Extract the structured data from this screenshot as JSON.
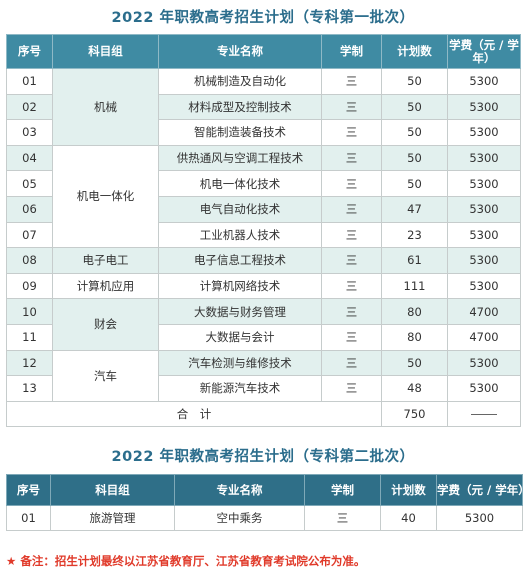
{
  "table1": {
    "title": "2022 年职教高考招生计划（专科第一批次）",
    "headers": [
      "序号",
      "科目组",
      "专业名称",
      "学制",
      "计划数",
      "学费（元 / 学年）"
    ],
    "groups": [
      {
        "name": "机械",
        "start": 0,
        "span": 3
      },
      {
        "name": "机电一体化",
        "start": 3,
        "span": 4
      },
      {
        "name": "电子电工",
        "start": 7,
        "span": 1
      },
      {
        "name": "计算机应用",
        "start": 8,
        "span": 1
      },
      {
        "name": "财会",
        "start": 9,
        "span": 2
      },
      {
        "name": "汽车",
        "start": 11,
        "span": 2
      }
    ],
    "rows": [
      {
        "no": "01",
        "major": "机械制造及自动化",
        "years": "三",
        "plan": "50",
        "fee": "5300"
      },
      {
        "no": "02",
        "major": "材料成型及控制技术",
        "years": "三",
        "plan": "50",
        "fee": "5300"
      },
      {
        "no": "03",
        "major": "智能制造装备技术",
        "years": "三",
        "plan": "50",
        "fee": "5300"
      },
      {
        "no": "04",
        "major": "供热通风与空调工程技术",
        "years": "三",
        "plan": "50",
        "fee": "5300"
      },
      {
        "no": "05",
        "major": "机电一体化技术",
        "years": "三",
        "plan": "50",
        "fee": "5300"
      },
      {
        "no": "06",
        "major": "电气自动化技术",
        "years": "三",
        "plan": "47",
        "fee": "5300"
      },
      {
        "no": "07",
        "major": "工业机器人技术",
        "years": "三",
        "plan": "23",
        "fee": "5300"
      },
      {
        "no": "08",
        "major": "电子信息工程技术",
        "years": "三",
        "plan": "61",
        "fee": "5300"
      },
      {
        "no": "09",
        "major": "计算机网络技术",
        "years": "三",
        "plan": "111",
        "fee": "5300"
      },
      {
        "no": "10",
        "major": "大数据与财务管理",
        "years": "三",
        "plan": "80",
        "fee": "4700"
      },
      {
        "no": "11",
        "major": "大数据与会计",
        "years": "三",
        "plan": "80",
        "fee": "4700"
      },
      {
        "no": "12",
        "major": "汽车检测与维修技术",
        "years": "三",
        "plan": "50",
        "fee": "5300"
      },
      {
        "no": "13",
        "major": "新能源汽车技术",
        "years": "三",
        "plan": "48",
        "fee": "5300"
      }
    ],
    "total_label": "合　计",
    "total_plan": "750"
  },
  "table2": {
    "title": "2022 年职教高考招生计划（专科第二批次）",
    "headers": [
      "序号",
      "科目组",
      "专业名称",
      "学制",
      "计划数",
      "学费（元 / 学年）"
    ],
    "rows": [
      {
        "no": "01",
        "group": "旅游管理",
        "major": "空中乘务",
        "years": "三",
        "plan": "40",
        "fee": "5300"
      }
    ]
  },
  "note": {
    "star": "★",
    "text": "备注：招生计划最终以江苏省教育厅、江苏省教育考试院公布为准。"
  },
  "colors": {
    "header": "#3f8ba3",
    "shade": "#e2f0ee",
    "title": "#2b6d8c",
    "note": "#e03a2a"
  }
}
